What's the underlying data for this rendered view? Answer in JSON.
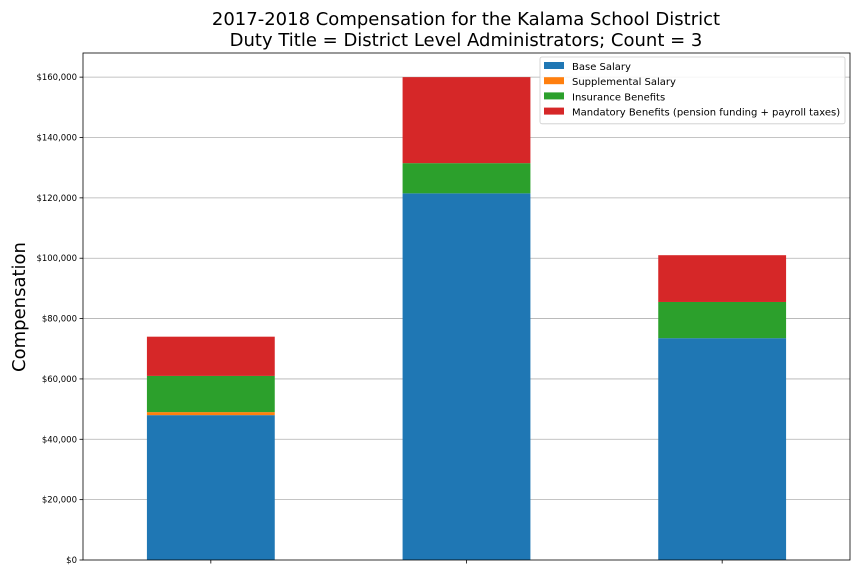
{
  "chart_data": {
    "type": "bar",
    "stacked": true,
    "title": "2017-2018 Compensation for the Kalama School District",
    "subtitle": "Duty Title = District Level Administrators; Count = 3",
    "xlabel": "",
    "ylabel": "Compensation",
    "categories": [
      "",
      "",
      ""
    ],
    "ylim": [
      0,
      168000
    ],
    "yticks": [
      0,
      20000,
      40000,
      60000,
      80000,
      100000,
      120000,
      140000,
      160000
    ],
    "ytick_labels": [
      "$0",
      "$20,000",
      "$40,000",
      "$60,000",
      "$80,000",
      "$100,000",
      "$120,000",
      "$140,000",
      "$160,000"
    ],
    "grid": true,
    "legend_position": "top-right",
    "series": [
      {
        "name": "Base Salary",
        "color": "#1f77b4",
        "values": [
          48000,
          121500,
          73500
        ]
      },
      {
        "name": "Supplemental Salary",
        "color": "#ff7f0e",
        "values": [
          1000,
          0,
          0
        ]
      },
      {
        "name": "Insurance Benefits",
        "color": "#2ca02c",
        "values": [
          12000,
          10000,
          12000
        ]
      },
      {
        "name": "Mandatory Benefits (pension funding + payroll taxes)",
        "color": "#d62728",
        "values": [
          13000,
          28500,
          15500
        ]
      }
    ]
  }
}
